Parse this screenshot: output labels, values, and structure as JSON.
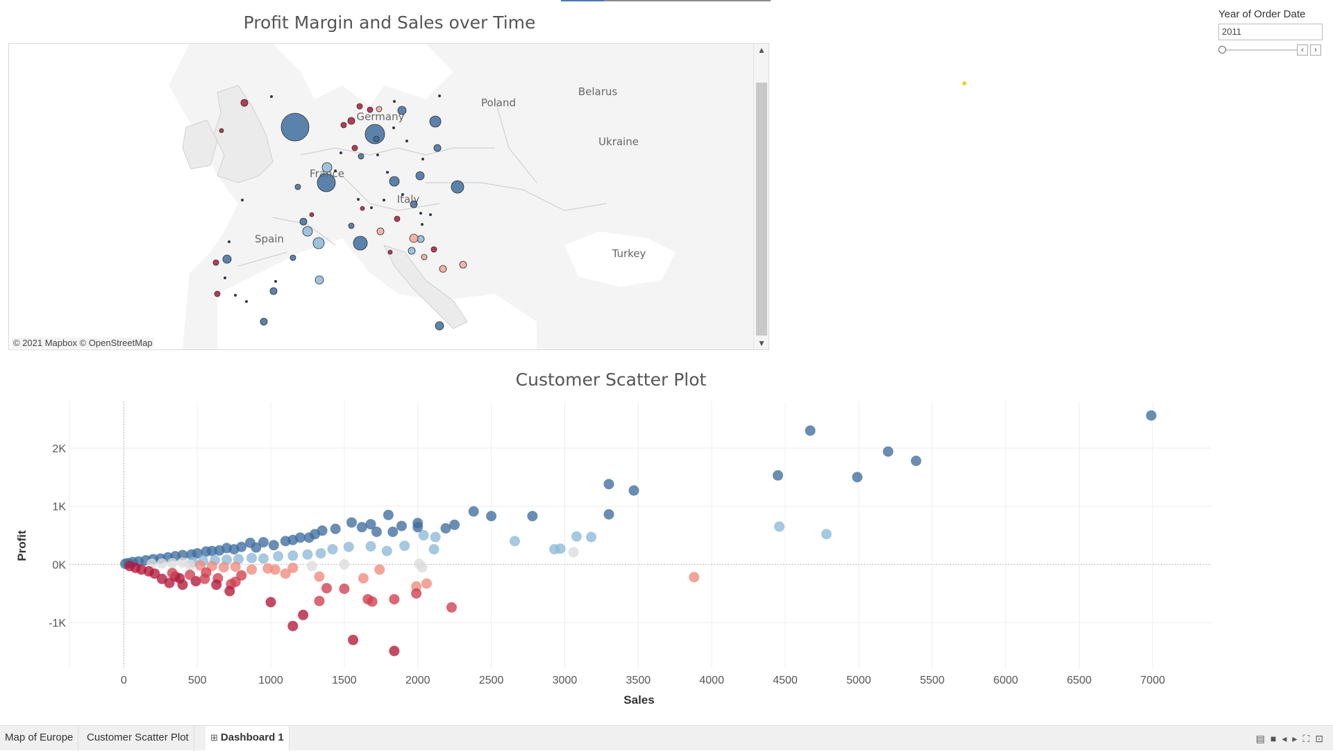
{
  "dashboard": {
    "map_title": "Profit Margin and Sales over Time",
    "scatter_title": "Customer Scatter Plot"
  },
  "map": {
    "labels": [
      {
        "key": "poland",
        "text": "Poland"
      },
      {
        "key": "belarus",
        "text": "Belarus"
      },
      {
        "key": "ukraine",
        "text": "Ukraine"
      },
      {
        "key": "germany",
        "text": "Germany"
      },
      {
        "key": "france",
        "text": "France"
      },
      {
        "key": "italy",
        "text": "Italy"
      },
      {
        "key": "spain",
        "text": "Spain"
      },
      {
        "key": "turkey",
        "text": "Turkey"
      }
    ],
    "credit": "© 2021 Mapbox © OpenStreetMap"
  },
  "filter": {
    "label": "Year of Order Date",
    "value": "2011",
    "prev_icon": "chevron-left-icon",
    "next_icon": "chevron-right-icon"
  },
  "tabs": [
    {
      "label": "Map of Europe",
      "active": false
    },
    {
      "label": "Customer Scatter Plot",
      "active": false
    },
    {
      "label": "Dashboard 1",
      "active": true,
      "icon": "dashboard-grid-icon"
    }
  ],
  "colors": {
    "high_profit": "#3f6d9e",
    "mid_profit": "#8db8d9",
    "neutral": "#dddddd",
    "low_loss": "#f4a49a",
    "high_loss": "#b2183b",
    "land": "#f1f1f1",
    "water": "#ffffff"
  },
  "chart_data": {
    "type": "scatter",
    "title": "Customer Scatter Plot",
    "xlabel": "Sales",
    "ylabel": "Profit",
    "xlim": [
      -370,
      7400
    ],
    "ylim": [
      -1800,
      2800
    ],
    "x_ticks": [
      0,
      500,
      1000,
      1500,
      2000,
      2500,
      3000,
      3500,
      4000,
      4500,
      5000,
      5500,
      6000,
      6500,
      7000
    ],
    "x_tick_labels": [
      "0",
      "500",
      "1000",
      "1500",
      "2000",
      "2500",
      "3000",
      "3500",
      "4000",
      "4500",
      "5000",
      "5500",
      "6000",
      "6500",
      "7000"
    ],
    "y_ticks": [
      -1000,
      0,
      1000,
      2000
    ],
    "y_tick_labels": [
      "-1K",
      "0K",
      "1K",
      "2K"
    ],
    "grid": true,
    "points": [
      [
        6990,
        2560
      ],
      [
        4670,
        2300
      ],
      [
        5200,
        1940
      ],
      [
        5390,
        1780
      ],
      [
        4450,
        1530
      ],
      [
        4990,
        1500
      ],
      [
        3300,
        1380
      ],
      [
        3470,
        1270
      ],
      [
        2380,
        910
      ],
      [
        2500,
        830
      ],
      [
        2780,
        830
      ],
      [
        3300,
        860
      ],
      [
        1800,
        850
      ],
      [
        1550,
        720
      ],
      [
        1680,
        690
      ],
      [
        1890,
        660
      ],
      [
        2000,
        710
      ],
      [
        2250,
        680
      ],
      [
        2190,
        620
      ],
      [
        2120,
        470
      ],
      [
        2040,
        500
      ],
      [
        2000,
        640
      ],
      [
        1830,
        560
      ],
      [
        1620,
        640
      ],
      [
        1720,
        560
      ],
      [
        1440,
        610
      ],
      [
        1350,
        580
      ],
      [
        1300,
        520
      ],
      [
        1260,
        460
      ],
      [
        1200,
        460
      ],
      [
        1150,
        420
      ],
      [
        1100,
        400
      ],
      [
        1020,
        330
      ],
      [
        950,
        380
      ],
      [
        900,
        290
      ],
      [
        860,
        370
      ],
      [
        800,
        300
      ],
      [
        750,
        260
      ],
      [
        700,
        280
      ],
      [
        650,
        240
      ],
      [
        600,
        230
      ],
      [
        560,
        220
      ],
      [
        500,
        190
      ],
      [
        460,
        170
      ],
      [
        400,
        160
      ],
      [
        350,
        140
      ],
      [
        300,
        120
      ],
      [
        250,
        100
      ],
      [
        200,
        90
      ],
      [
        150,
        70
      ],
      [
        100,
        50
      ],
      [
        60,
        40
      ],
      [
        30,
        20
      ],
      [
        10,
        10
      ],
      [
        4460,
        650
      ],
      [
        4780,
        520
      ],
      [
        2660,
        400
      ],
      [
        2930,
        260
      ],
      [
        2970,
        270
      ],
      [
        3060,
        210
      ],
      [
        3080,
        480
      ],
      [
        3180,
        470
      ],
      [
        2110,
        260
      ],
      [
        1910,
        320
      ],
      [
        1790,
        230
      ],
      [
        1680,
        310
      ],
      [
        1530,
        300
      ],
      [
        1420,
        260
      ],
      [
        1340,
        190
      ],
      [
        1250,
        170
      ],
      [
        1150,
        150
      ],
      [
        1050,
        140
      ],
      [
        950,
        100
      ],
      [
        870,
        110
      ],
      [
        780,
        90
      ],
      [
        700,
        80
      ],
      [
        620,
        70
      ],
      [
        540,
        60
      ],
      [
        470,
        40
      ],
      [
        400,
        30
      ],
      [
        330,
        20
      ],
      [
        260,
        15
      ],
      [
        190,
        10
      ],
      [
        2010,
        10
      ],
      [
        2030,
        -50
      ],
      [
        1500,
        0
      ],
      [
        1280,
        -30
      ],
      [
        1150,
        -60
      ],
      [
        1030,
        -90
      ],
      [
        3880,
        -220
      ],
      [
        1740,
        -90
      ],
      [
        1630,
        -240
      ],
      [
        1330,
        -210
      ],
      [
        1100,
        -160
      ],
      [
        980,
        -70
      ],
      [
        870,
        -90
      ],
      [
        760,
        -40
      ],
      [
        680,
        -50
      ],
      [
        600,
        -30
      ],
      [
        520,
        -20
      ],
      [
        450,
        -10
      ],
      [
        2060,
        -330
      ],
      [
        1990,
        -380
      ],
      [
        1990,
        -500
      ],
      [
        1840,
        -600
      ],
      [
        1660,
        -600
      ],
      [
        1690,
        -640
      ],
      [
        1500,
        -420
      ],
      [
        1380,
        -410
      ],
      [
        1330,
        -630
      ],
      [
        1220,
        -870
      ],
      [
        1150,
        -1060
      ],
      [
        1000,
        -650
      ],
      [
        2230,
        -740
      ],
      [
        1560,
        -1300
      ],
      [
        1840,
        -1490
      ],
      [
        800,
        -190
      ],
      [
        730,
        -340
      ],
      [
        720,
        -460
      ],
      [
        640,
        -240
      ],
      [
        560,
        -140
      ],
      [
        490,
        -290
      ],
      [
        400,
        -350
      ],
      [
        350,
        -210
      ],
      [
        310,
        -320
      ],
      [
        260,
        -250
      ],
      [
        210,
        -160
      ],
      [
        170,
        -120
      ],
      [
        120,
        -90
      ],
      [
        80,
        -60
      ],
      [
        40,
        -30
      ],
      [
        760,
        -300
      ],
      [
        630,
        -350
      ],
      [
        550,
        -250
      ],
      [
        450,
        -180
      ],
      [
        380,
        -240
      ],
      [
        330,
        -150
      ]
    ]
  }
}
